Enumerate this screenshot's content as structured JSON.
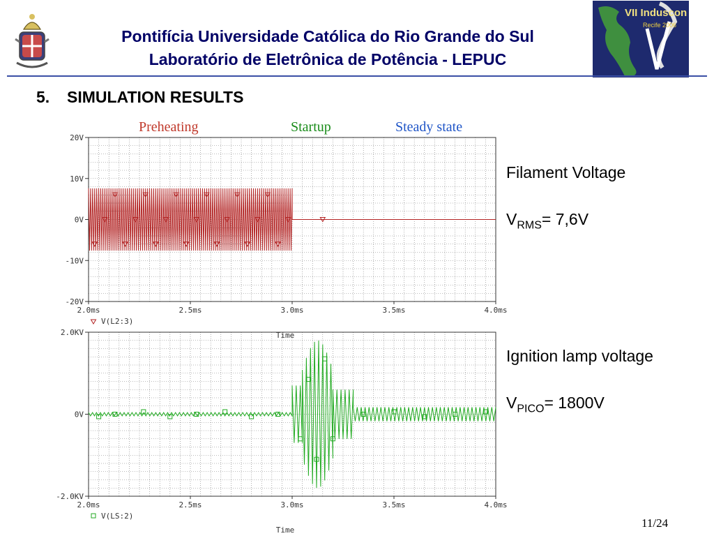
{
  "header": {
    "line1": "Pontifícia Universidade Católica do Rio Grande do Sul",
    "line2": "Laboratório de Eletrônica de Potência - LEPUC"
  },
  "logo": {
    "text": "VII Induscon",
    "subtext": "Recife 2006"
  },
  "section": {
    "number": "5.",
    "title": "SIMULATION RESULTS"
  },
  "phases": [
    {
      "label": "Preheating",
      "color": "#c0392b"
    },
    {
      "label": "Startup",
      "color": "#1a8c1a"
    },
    {
      "label": "Steady state",
      "color": "#1f55c7"
    }
  ],
  "side": {
    "filament_title": "Filament Voltage",
    "filament_v": "V",
    "filament_sub": "RMS",
    "filament_val": "= 7,6V",
    "ignition_title": "Ignition lamp voltage",
    "ignition_v": "V",
    "ignition_sub": "PICO",
    "ignition_val": "= 1800V"
  },
  "page": "11/24",
  "chart_data": [
    {
      "type": "line",
      "x_unit": "ms",
      "xlim": [
        2.0,
        4.0
      ],
      "ylim": [
        -20,
        20
      ],
      "xticks": [
        "2.0ms",
        "2.5ms",
        "3.0ms",
        "3.5ms",
        "4.0ms"
      ],
      "yticks": [
        "20V",
        "10V",
        "0V",
        "-10V",
        "-20V"
      ],
      "xlabel": "Time",
      "series": [
        {
          "name": "V(L2:3)",
          "color": "#b22222",
          "marker": "triangle-down",
          "segments": [
            {
              "x_start": 2.0,
              "x_end": 3.0,
              "amplitude": 7.6
            },
            {
              "x_start": 3.0,
              "x_end": 4.0,
              "amplitude": 0.0
            }
          ]
        }
      ]
    },
    {
      "type": "line",
      "x_unit": "ms",
      "xlim": [
        2.0,
        4.0
      ],
      "ylim": [
        -2000,
        2000
      ],
      "xticks": [
        "2.0ms",
        "2.5ms",
        "3.0ms",
        "3.5ms",
        "4.0ms"
      ],
      "yticks": [
        "2.0KV",
        "0V",
        "-2.0KV"
      ],
      "xlabel": "Time",
      "series": [
        {
          "name": "V(LS:2)",
          "color": "#22aa22",
          "marker": "square",
          "segments": [
            {
              "x_start": 2.0,
              "x_end": 3.0,
              "amplitude": 40
            },
            {
              "x_start": 3.0,
              "x_end": 3.05,
              "amplitude": 700
            },
            {
              "x_start": 3.05,
              "x_end": 3.2,
              "amplitude": 1800
            },
            {
              "x_start": 3.2,
              "x_end": 3.3,
              "amplitude": 600
            },
            {
              "x_start": 3.3,
              "x_end": 4.0,
              "amplitude": 170
            }
          ]
        }
      ]
    }
  ]
}
